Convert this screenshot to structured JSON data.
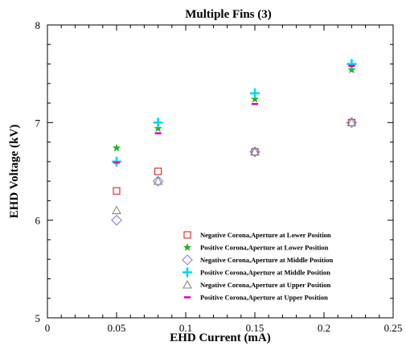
{
  "chart_data": {
    "type": "scatter",
    "title": "Multiple Fins (3)",
    "xlabel": "EHD Current (mA)",
    "ylabel": "EHD Voltage (kV)",
    "xlim": [
      0,
      0.25
    ],
    "ylim": [
      5,
      8
    ],
    "xticks": [
      0,
      0.05,
      0.1,
      0.15,
      0.2,
      0.25
    ],
    "xtick_labels": [
      "0",
      "0.05",
      "0.1",
      "0.15",
      "0.2",
      "0.25"
    ],
    "yticks": [
      5,
      6,
      7,
      8
    ],
    "ytick_labels": [
      "5",
      "6",
      "7",
      "8"
    ],
    "grid": false,
    "legend_position": "bottom-right",
    "series": [
      {
        "name": "Negative Corona,Aperture at Lower Position",
        "marker": "square",
        "color": "#e02020",
        "x": [
          0.05,
          0.08,
          0.15,
          0.22
        ],
        "y": [
          6.3,
          6.5,
          6.7,
          7.0
        ]
      },
      {
        "name": "Positive Corona,Aperture at Lower Position",
        "marker": "star",
        "color": "#22b422",
        "x": [
          0.05,
          0.08,
          0.15,
          0.22
        ],
        "y": [
          6.74,
          6.94,
          7.24,
          7.54
        ]
      },
      {
        "name": "Negative Corona,Aperture at Middle Position",
        "marker": "diamond",
        "color": "#8a7ee8",
        "x": [
          0.05,
          0.08,
          0.15,
          0.22
        ],
        "y": [
          6.0,
          6.4,
          6.7,
          7.0
        ]
      },
      {
        "name": "Positive Corona,Aperture at Middle Position",
        "marker": "plus",
        "color": "#00d8f0",
        "x": [
          0.05,
          0.08,
          0.15,
          0.22
        ],
        "y": [
          6.6,
          7.0,
          7.3,
          7.6
        ]
      },
      {
        "name": "Negative Corona,Aperture at Upper Position",
        "marker": "triangle",
        "color": "#8a8a78",
        "x": [
          0.05,
          0.08,
          0.15,
          0.22
        ],
        "y": [
          6.1,
          6.4,
          6.7,
          7.0
        ]
      },
      {
        "name": "Positive Corona,Aperture at Upper Position",
        "marker": "dash",
        "color": "#e000c8",
        "x": [
          0.05,
          0.08,
          0.15,
          0.22
        ],
        "y": [
          6.59,
          6.89,
          7.19,
          7.58
        ]
      }
    ]
  }
}
